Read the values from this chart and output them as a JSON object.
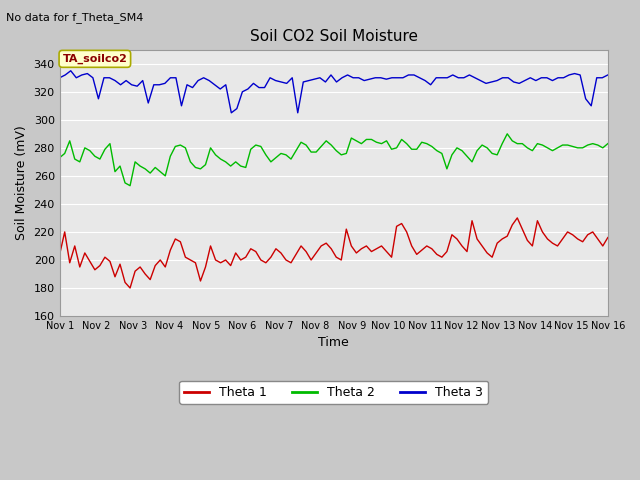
{
  "title": "Soil CO2 Soil Moisture",
  "no_data_text": "No data for f_Theta_SM4",
  "ta_label": "TA_soilco2",
  "xlabel": "Time",
  "ylabel": "Soil Moisture (mV)",
  "ylim": [
    160,
    350
  ],
  "yticks": [
    160,
    180,
    200,
    220,
    240,
    260,
    280,
    300,
    320,
    340
  ],
  "x_tick_labels": [
    "Nov 1",
    "Nov 2",
    "Nov 3",
    "Nov 4",
    "Nov 5",
    "Nov 6",
    "Nov 7",
    "Nov 8",
    "Nov 9",
    "Nov 10",
    "Nov 11",
    "Nov 12",
    "Nov 13",
    "Nov 14",
    "Nov 15",
    "Nov 16"
  ],
  "fig_bg_color": "#c8c8c8",
  "plot_bg_color": "#e8e8e8",
  "grid_color": "#ffffff",
  "theta1_color": "#cc0000",
  "theta2_color": "#00bb00",
  "theta3_color": "#0000cc",
  "legend_labels": [
    "Theta 1",
    "Theta 2",
    "Theta 3"
  ],
  "theta1": [
    204,
    220,
    198,
    210,
    195,
    205,
    199,
    193,
    196,
    202,
    199,
    188,
    197,
    184,
    180,
    192,
    195,
    190,
    186,
    196,
    200,
    195,
    207,
    215,
    213,
    202,
    200,
    198,
    185,
    195,
    210,
    200,
    198,
    200,
    196,
    205,
    200,
    202,
    208,
    206,
    200,
    198,
    202,
    208,
    205,
    200,
    198,
    204,
    210,
    206,
    200,
    205,
    210,
    212,
    208,
    202,
    200,
    222,
    210,
    205,
    208,
    210,
    206,
    208,
    210,
    206,
    202,
    224,
    226,
    220,
    210,
    204,
    207,
    210,
    208,
    204,
    202,
    206,
    218,
    215,
    210,
    206,
    228,
    215,
    210,
    205,
    202,
    212,
    215,
    217,
    225,
    230,
    222,
    214,
    210,
    228,
    220,
    215,
    212,
    210,
    215,
    220,
    218,
    215,
    213,
    218,
    220,
    215,
    210,
    216
  ],
  "theta2": [
    273,
    276,
    285,
    272,
    270,
    280,
    278,
    274,
    272,
    279,
    283,
    263,
    267,
    255,
    253,
    270,
    267,
    265,
    262,
    266,
    263,
    260,
    274,
    281,
    282,
    280,
    270,
    266,
    265,
    268,
    280,
    275,
    272,
    270,
    267,
    270,
    267,
    266,
    279,
    282,
    281,
    275,
    270,
    273,
    276,
    275,
    272,
    278,
    284,
    282,
    277,
    277,
    281,
    285,
    282,
    278,
    275,
    276,
    287,
    285,
    283,
    286,
    286,
    284,
    283,
    285,
    279,
    280,
    286,
    283,
    279,
    279,
    284,
    283,
    281,
    278,
    276,
    265,
    275,
    280,
    278,
    274,
    270,
    278,
    282,
    280,
    276,
    275,
    283,
    290,
    285,
    283,
    283,
    280,
    278,
    283,
    282,
    280,
    278,
    280,
    282,
    282,
    281,
    280,
    280,
    282,
    283,
    282,
    280,
    283
  ],
  "theta3": [
    330,
    332,
    335,
    330,
    332,
    333,
    330,
    315,
    330,
    330,
    328,
    325,
    328,
    325,
    324,
    328,
    312,
    325,
    325,
    326,
    330,
    330,
    310,
    325,
    323,
    328,
    330,
    328,
    325,
    322,
    325,
    305,
    308,
    320,
    322,
    326,
    323,
    323,
    330,
    328,
    327,
    326,
    330,
    305,
    327,
    328,
    329,
    330,
    327,
    332,
    327,
    330,
    332,
    330,
    330,
    328,
    329,
    330,
    330,
    329,
    330,
    330,
    330,
    332,
    332,
    330,
    328,
    325,
    330,
    330,
    330,
    332,
    330,
    330,
    332,
    330,
    328,
    326,
    327,
    328,
    330,
    330,
    327,
    326,
    328,
    330,
    328,
    330,
    330,
    328,
    330,
    330,
    332,
    333,
    332,
    315,
    310,
    330,
    330,
    332
  ]
}
